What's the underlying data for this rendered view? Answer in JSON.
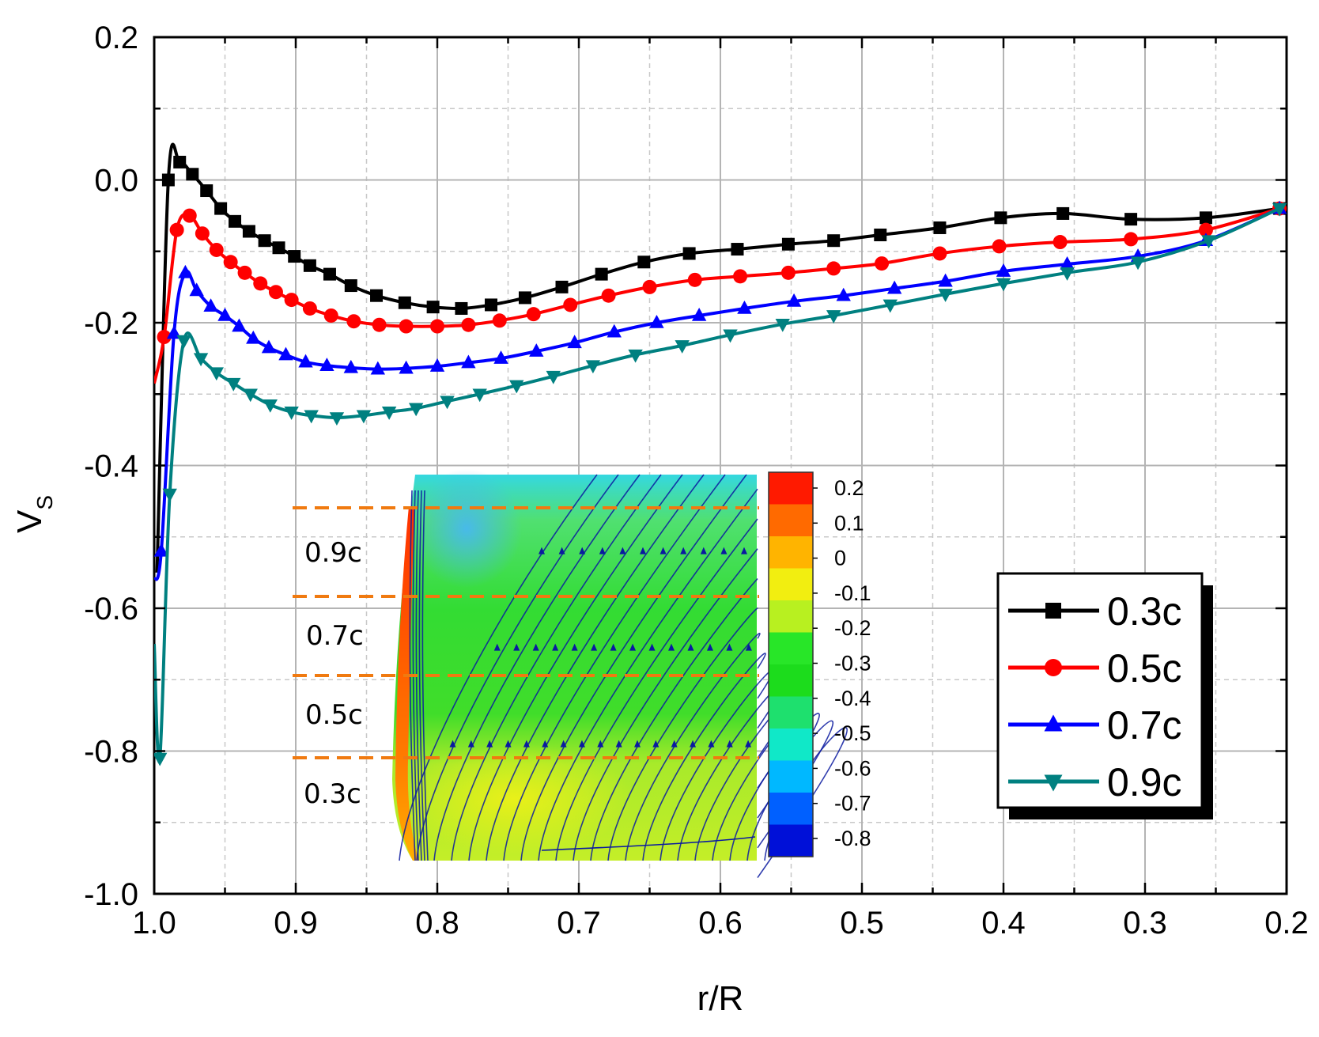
{
  "chart_data": {
    "type": "line",
    "title": "",
    "xlabel": "r/R",
    "ylabel_main": "V",
    "ylabel_sub": "S",
    "xlim": [
      1.0,
      0.2
    ],
    "ylim": [
      -1.0,
      0.2
    ],
    "x_ticks": [
      "1.0",
      "0.9",
      "0.8",
      "0.7",
      "0.6",
      "0.5",
      "0.4",
      "0.3",
      "0.2"
    ],
    "y_ticks": [
      "0.2",
      "0.0",
      "-0.2",
      "-0.4",
      "-0.6",
      "-0.8",
      "-1.0"
    ],
    "grid": true,
    "legend_position": "lower-right",
    "series": [
      {
        "name": "0.3c",
        "color": "#000000",
        "marker": "square",
        "x": [
          0.99,
          0.982,
          0.973,
          0.963,
          0.953,
          0.943,
          0.933,
          0.922,
          0.912,
          0.901,
          0.89,
          0.876,
          0.861,
          0.843,
          0.823,
          0.803,
          0.783,
          0.762,
          0.738,
          0.712,
          0.684,
          0.654,
          0.622,
          0.588,
          0.552,
          0.52,
          0.487,
          0.445,
          0.402,
          0.358,
          0.31,
          0.257,
          0.205
        ],
        "y": [
          0.0,
          0.025,
          0.008,
          -0.015,
          -0.04,
          -0.058,
          -0.072,
          -0.085,
          -0.095,
          -0.107,
          -0.12,
          -0.132,
          -0.148,
          -0.162,
          -0.172,
          -0.178,
          -0.18,
          -0.175,
          -0.165,
          -0.15,
          -0.132,
          -0.115,
          -0.103,
          -0.097,
          -0.09,
          -0.085,
          -0.077,
          -0.067,
          -0.053,
          -0.047,
          -0.055,
          -0.053,
          -0.04
        ]
      },
      {
        "name": "0.5c",
        "color": "#ff0000",
        "marker": "circle",
        "x": [
          0.993,
          0.984,
          0.975,
          0.966,
          0.956,
          0.946,
          0.936,
          0.925,
          0.914,
          0.903,
          0.89,
          0.875,
          0.859,
          0.841,
          0.822,
          0.8,
          0.778,
          0.756,
          0.732,
          0.706,
          0.679,
          0.65,
          0.618,
          0.586,
          0.552,
          0.52,
          0.486,
          0.445,
          0.403,
          0.36,
          0.31,
          0.257,
          0.205
        ],
        "y": [
          -0.22,
          -0.07,
          -0.05,
          -0.075,
          -0.098,
          -0.115,
          -0.13,
          -0.145,
          -0.157,
          -0.168,
          -0.18,
          -0.19,
          -0.198,
          -0.203,
          -0.205,
          -0.205,
          -0.203,
          -0.197,
          -0.188,
          -0.175,
          -0.162,
          -0.15,
          -0.14,
          -0.135,
          -0.13,
          -0.124,
          -0.117,
          -0.103,
          -0.093,
          -0.087,
          -0.083,
          -0.07,
          -0.04
        ]
      },
      {
        "name": "0.7c",
        "color": "#0000ff",
        "marker": "triangle-up",
        "x": [
          0.995,
          0.986,
          0.978,
          0.97,
          0.96,
          0.95,
          0.94,
          0.93,
          0.919,
          0.907,
          0.893,
          0.878,
          0.861,
          0.842,
          0.822,
          0.8,
          0.778,
          0.755,
          0.73,
          0.703,
          0.675,
          0.645,
          0.615,
          0.583,
          0.548,
          0.513,
          0.477,
          0.441,
          0.4,
          0.355,
          0.305,
          0.257,
          0.205
        ],
        "y": [
          -0.52,
          -0.215,
          -0.13,
          -0.155,
          -0.177,
          -0.19,
          -0.205,
          -0.222,
          -0.235,
          -0.245,
          -0.255,
          -0.26,
          -0.263,
          -0.265,
          -0.264,
          -0.261,
          -0.256,
          -0.25,
          -0.24,
          -0.228,
          -0.213,
          -0.2,
          -0.19,
          -0.18,
          -0.17,
          -0.162,
          -0.152,
          -0.142,
          -0.128,
          -0.118,
          -0.107,
          -0.085,
          -0.04
        ]
      },
      {
        "name": "0.9c",
        "color": "#008080",
        "marker": "triangle-down",
        "x": [
          0.996,
          0.989,
          0.979,
          0.967,
          0.956,
          0.944,
          0.932,
          0.918,
          0.903,
          0.889,
          0.871,
          0.852,
          0.834,
          0.815,
          0.793,
          0.77,
          0.744,
          0.718,
          0.69,
          0.66,
          0.627,
          0.593,
          0.556,
          0.52,
          0.48,
          0.441,
          0.4,
          0.355,
          0.305,
          0.255,
          0.205
        ],
        "y": [
          -0.81,
          -0.44,
          -0.225,
          -0.25,
          -0.27,
          -0.285,
          -0.3,
          -0.315,
          -0.325,
          -0.33,
          -0.333,
          -0.33,
          -0.325,
          -0.32,
          -0.31,
          -0.3,
          -0.288,
          -0.275,
          -0.26,
          -0.245,
          -0.232,
          -0.217,
          -0.202,
          -0.19,
          -0.175,
          -0.16,
          -0.145,
          -0.13,
          -0.115,
          -0.085,
          -0.04
        ]
      }
    ],
    "inset": {
      "description": "surface streamlines colored by V_S contour",
      "cut_labels": [
        "0.9c",
        "0.7c",
        "0.5c",
        "0.3c"
      ],
      "colorbar_labels": [
        "0.2",
        "0.1",
        "0",
        "-0.1",
        "-0.2",
        "-0.3",
        "-0.4",
        "-0.5",
        "-0.6",
        "-0.7",
        "-0.8"
      ],
      "colorbar_colors": [
        "#ff1a00",
        "#ff6a00",
        "#ffb400",
        "#f2ee10",
        "#b8f020",
        "#28e628",
        "#1cdc1c",
        "#1ee06e",
        "#10e8c8",
        "#00b8ff",
        "#0060ff",
        "#0010d8"
      ],
      "dash_color": "#f07a10",
      "streamline_color": "#0a1aa0"
    }
  }
}
